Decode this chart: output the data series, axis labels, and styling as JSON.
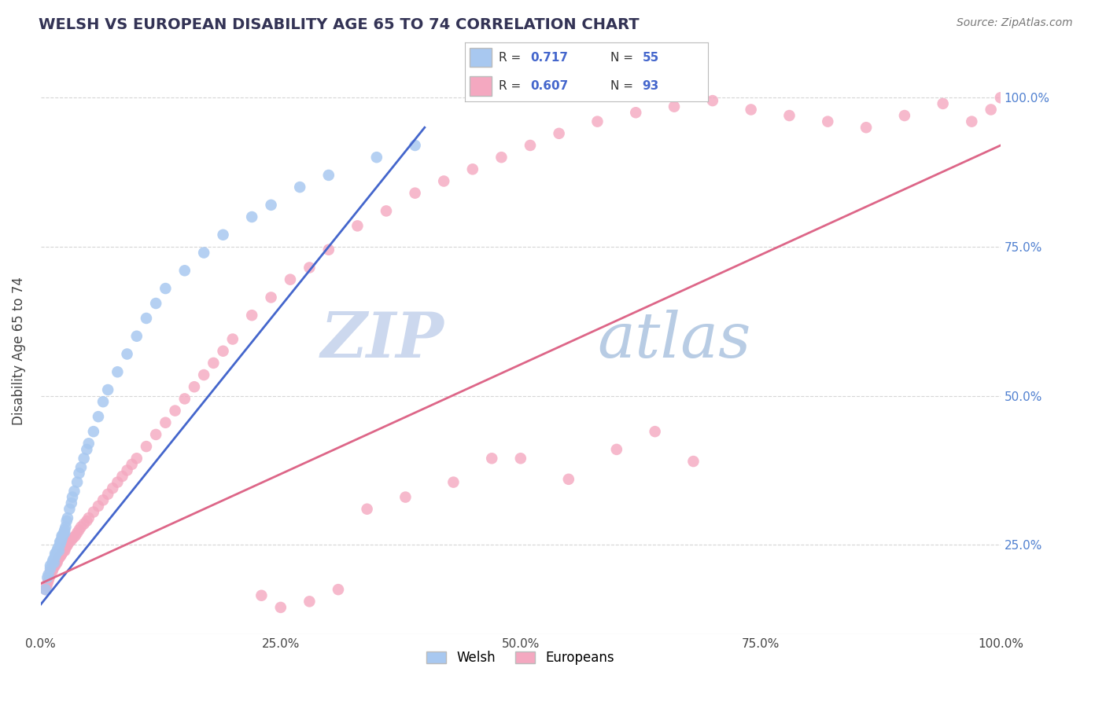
{
  "title": "WELSH VS EUROPEAN DISABILITY AGE 65 TO 74 CORRELATION CHART",
  "source": "Source: ZipAtlas.com",
  "ylabel": "Disability Age 65 to 74",
  "xlim": [
    0,
    1.0
  ],
  "ylim": [
    0.1,
    1.05
  ],
  "xtick_labels": [
    "0.0%",
    "25.0%",
    "50.0%",
    "75.0%",
    "100.0%"
  ],
  "ytick_labels_right": [
    "25.0%",
    "50.0%",
    "75.0%",
    "100.0%"
  ],
  "welsh_R": 0.717,
  "welsh_N": 55,
  "european_R": 0.607,
  "european_N": 93,
  "welsh_color": "#a8c8f0",
  "european_color": "#f4a8c0",
  "welsh_line_color": "#4466cc",
  "european_line_color": "#dd6688",
  "watermark_color": "#ccd8ee",
  "welsh_x": [
    0.005,
    0.007,
    0.008,
    0.01,
    0.01,
    0.012,
    0.013,
    0.014,
    0.015,
    0.015,
    0.016,
    0.017,
    0.018,
    0.019,
    0.02,
    0.02,
    0.021,
    0.022,
    0.022,
    0.023,
    0.024,
    0.025,
    0.025,
    0.026,
    0.027,
    0.028,
    0.03,
    0.032,
    0.033,
    0.035,
    0.038,
    0.04,
    0.042,
    0.045,
    0.048,
    0.05,
    0.055,
    0.06,
    0.065,
    0.07,
    0.08,
    0.09,
    0.1,
    0.11,
    0.12,
    0.13,
    0.15,
    0.17,
    0.19,
    0.22,
    0.24,
    0.27,
    0.3,
    0.35,
    0.39
  ],
  "welsh_y": [
    0.175,
    0.195,
    0.2,
    0.21,
    0.215,
    0.22,
    0.225,
    0.22,
    0.23,
    0.235,
    0.235,
    0.24,
    0.245,
    0.24,
    0.25,
    0.255,
    0.255,
    0.26,
    0.265,
    0.265,
    0.27,
    0.27,
    0.275,
    0.28,
    0.29,
    0.295,
    0.31,
    0.32,
    0.33,
    0.34,
    0.355,
    0.37,
    0.38,
    0.395,
    0.41,
    0.42,
    0.44,
    0.465,
    0.49,
    0.51,
    0.54,
    0.57,
    0.6,
    0.63,
    0.655,
    0.68,
    0.71,
    0.74,
    0.77,
    0.8,
    0.82,
    0.85,
    0.87,
    0.9,
    0.92
  ],
  "european_x": [
    0.005,
    0.006,
    0.007,
    0.008,
    0.009,
    0.01,
    0.01,
    0.012,
    0.013,
    0.014,
    0.015,
    0.016,
    0.017,
    0.018,
    0.019,
    0.02,
    0.021,
    0.022,
    0.023,
    0.024,
    0.025,
    0.026,
    0.027,
    0.028,
    0.03,
    0.032,
    0.034,
    0.036,
    0.038,
    0.04,
    0.042,
    0.045,
    0.048,
    0.05,
    0.055,
    0.06,
    0.065,
    0.07,
    0.075,
    0.08,
    0.085,
    0.09,
    0.095,
    0.1,
    0.11,
    0.12,
    0.13,
    0.14,
    0.15,
    0.16,
    0.17,
    0.18,
    0.19,
    0.2,
    0.22,
    0.24,
    0.26,
    0.28,
    0.3,
    0.33,
    0.36,
    0.39,
    0.42,
    0.45,
    0.48,
    0.51,
    0.54,
    0.58,
    0.62,
    0.66,
    0.7,
    0.74,
    0.78,
    0.82,
    0.86,
    0.9,
    0.94,
    0.97,
    0.99,
    1.0,
    0.5,
    0.55,
    0.6,
    0.64,
    0.68,
    0.43,
    0.47,
    0.38,
    0.34,
    0.31,
    0.28,
    0.25,
    0.23
  ],
  "european_y": [
    0.175,
    0.18,
    0.185,
    0.19,
    0.195,
    0.2,
    0.205,
    0.205,
    0.21,
    0.215,
    0.215,
    0.22,
    0.22,
    0.225,
    0.228,
    0.23,
    0.232,
    0.235,
    0.238,
    0.24,
    0.24,
    0.245,
    0.248,
    0.25,
    0.255,
    0.258,
    0.262,
    0.265,
    0.27,
    0.275,
    0.28,
    0.285,
    0.29,
    0.295,
    0.305,
    0.315,
    0.325,
    0.335,
    0.345,
    0.355,
    0.365,
    0.375,
    0.385,
    0.395,
    0.415,
    0.435,
    0.455,
    0.475,
    0.495,
    0.515,
    0.535,
    0.555,
    0.575,
    0.595,
    0.635,
    0.665,
    0.695,
    0.715,
    0.745,
    0.785,
    0.81,
    0.84,
    0.86,
    0.88,
    0.9,
    0.92,
    0.94,
    0.96,
    0.975,
    0.985,
    0.995,
    0.98,
    0.97,
    0.96,
    0.95,
    0.97,
    0.99,
    0.96,
    0.98,
    1.0,
    0.395,
    0.36,
    0.41,
    0.44,
    0.39,
    0.355,
    0.395,
    0.33,
    0.31,
    0.175,
    0.155,
    0.145,
    0.165
  ],
  "welsh_line_x": [
    0.0,
    0.4
  ],
  "welsh_line_y": [
    0.15,
    0.95
  ],
  "european_line_x": [
    0.0,
    1.0
  ],
  "european_line_y": [
    0.185,
    0.92
  ]
}
